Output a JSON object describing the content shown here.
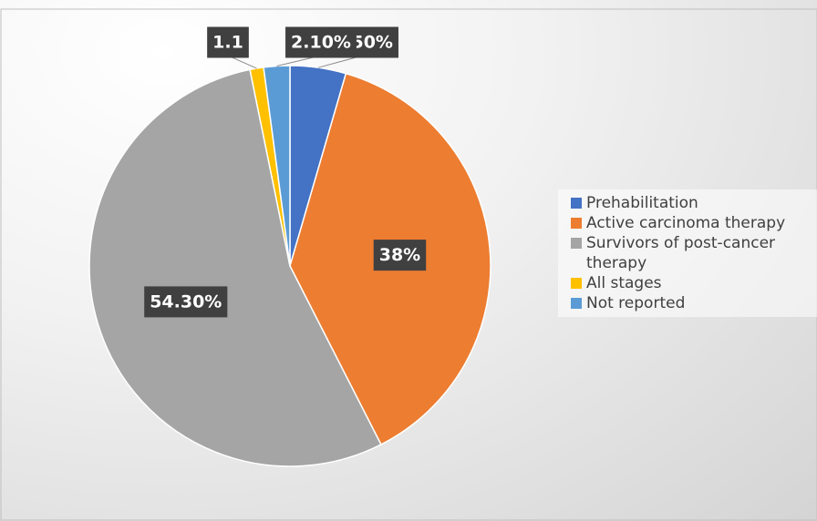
{
  "chart_data": {
    "type": "pie",
    "categories": [
      "Prehabilitation",
      "Active carcinoma therapy",
      "Survivors of post-cancer therapy",
      "All stages",
      "Not reported"
    ],
    "values": [
      4.5,
      38,
      54.3,
      1.1,
      2.1
    ],
    "value_labels": [
      "4.50%",
      "38%",
      "54.30%",
      "1.1",
      "2.10%"
    ],
    "colors": [
      "#4472c4",
      "#ed7d31",
      "#a5a5a5",
      "#ffc000",
      "#5b9bd5"
    ]
  }
}
